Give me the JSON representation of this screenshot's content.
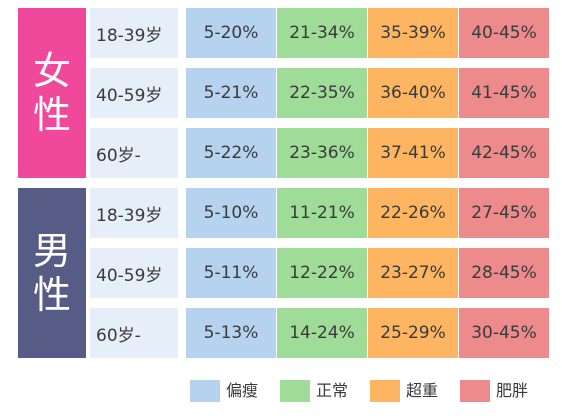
{
  "colors": {
    "female": "#f0489b",
    "male": "#575c87",
    "age_bg": "#e6eefa",
    "underweight": "#b5d3ef",
    "normal": "#9fdc97",
    "overweight": "#fdb562",
    "obese": "#ed8a8b"
  },
  "groups": [
    {
      "gender": [
        "女",
        "性"
      ],
      "rows": [
        {
          "age": "18-39岁",
          "values": [
            "5-20%",
            "21-34%",
            "35-39%",
            "40-45%"
          ]
        },
        {
          "age": "40-59岁",
          "values": [
            "5-21%",
            "22-35%",
            "36-40%",
            "41-45%"
          ]
        },
        {
          "age": "60岁-",
          "values": [
            "5-22%",
            "23-36%",
            "37-41%",
            "42-45%"
          ]
        }
      ]
    },
    {
      "gender": [
        "男",
        "性"
      ],
      "rows": [
        {
          "age": "18-39岁",
          "values": [
            "5-10%",
            "11-21%",
            "22-26%",
            "27-45%"
          ]
        },
        {
          "age": "40-59岁",
          "values": [
            "5-11%",
            "12-22%",
            "23-27%",
            "28-45%"
          ]
        },
        {
          "age": "60岁-",
          "values": [
            "5-13%",
            "14-24%",
            "25-29%",
            "30-45%"
          ]
        }
      ]
    }
  ],
  "legend": [
    "偏瘦",
    "正常",
    "超重",
    "肥胖"
  ]
}
